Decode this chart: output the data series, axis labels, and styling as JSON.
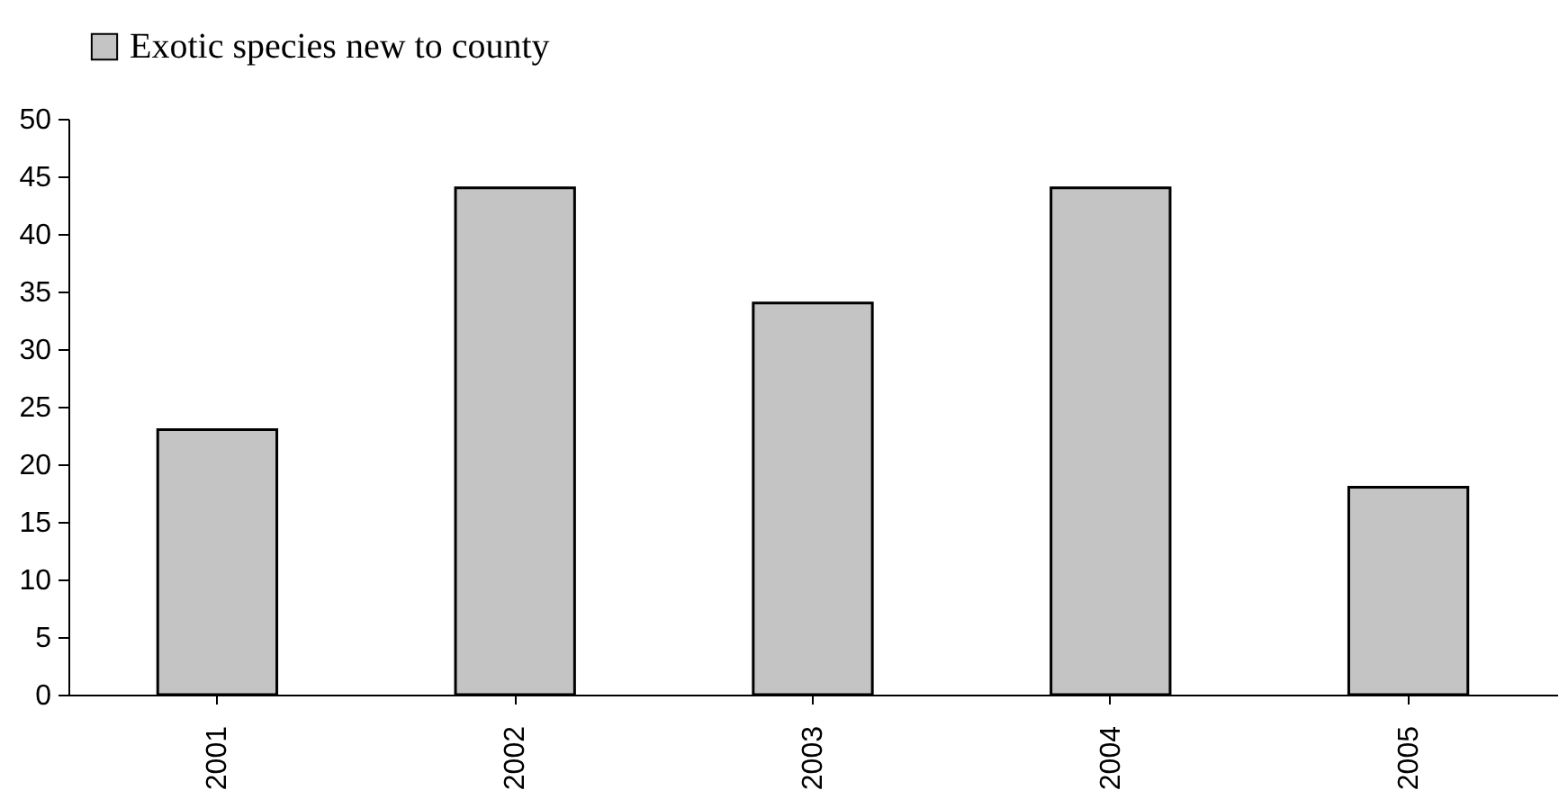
{
  "chart_data": {
    "type": "bar",
    "categories": [
      "2001",
      "2002",
      "2003",
      "2004",
      "2005"
    ],
    "series": [
      {
        "name": "Exotic species new to county",
        "color": "#c4c4c4",
        "values": [
          23,
          44,
          34,
          44,
          18
        ]
      }
    ],
    "ylim": [
      0,
      50
    ],
    "yticks": [
      0,
      5,
      10,
      15,
      20,
      25,
      30,
      35,
      40,
      45,
      50
    ],
    "grid": false,
    "legend": "top"
  }
}
